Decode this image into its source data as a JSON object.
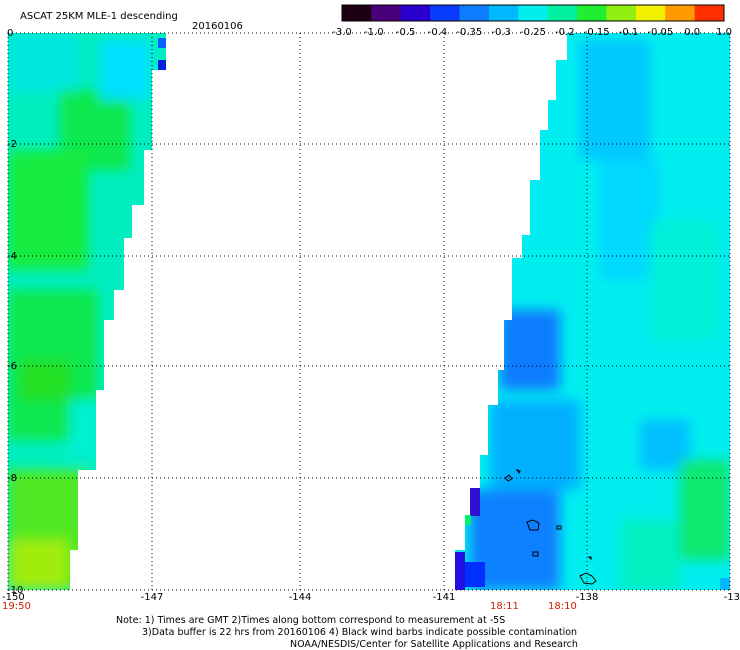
{
  "header": {
    "title": "ASCAT 25KM MLE-1 descending",
    "date": "20160106"
  },
  "colorbar": {
    "labels": [
      "-3.0",
      "-1.0",
      "-0.5",
      "-0.4",
      "-0.35",
      "-0.3",
      "-0.25",
      "-0.2",
      "-0.15",
      "-0.1",
      "-0.05",
      "0.0",
      "1.0"
    ],
    "colors": [
      "#1a0010",
      "#4a007a",
      "#2a00d0",
      "#0a3cff",
      "#0d7cff",
      "#00b8ff",
      "#00eeee",
      "#00f0a0",
      "#20ee30",
      "#90ee10",
      "#f0f000",
      "#ff9a00",
      "#ff3000"
    ]
  },
  "axes": {
    "x_ticks": [
      "-150",
      "-147",
      "-144",
      "-141",
      "-138",
      "-13"
    ],
    "y_ticks": [
      "0",
      "-2",
      "-4",
      "-6",
      "-8",
      "-10"
    ],
    "xlim": [
      -150,
      -135
    ],
    "ylim": [
      -10,
      0
    ],
    "grid": true
  },
  "times": {
    "left": "19:50",
    "t1": "18:11",
    "t2": "18:10"
  },
  "notes": {
    "line1": "Note: 1) Times are GMT 2)Times along bottom correspond to measurement at -5S",
    "line2": "3)Data buffer is 22 hrs from 20160106 4) Black wind barbs indicate possible contamination",
    "line3": "NOAA/NESDIS/Center for Satellite Applications and Research"
  }
}
